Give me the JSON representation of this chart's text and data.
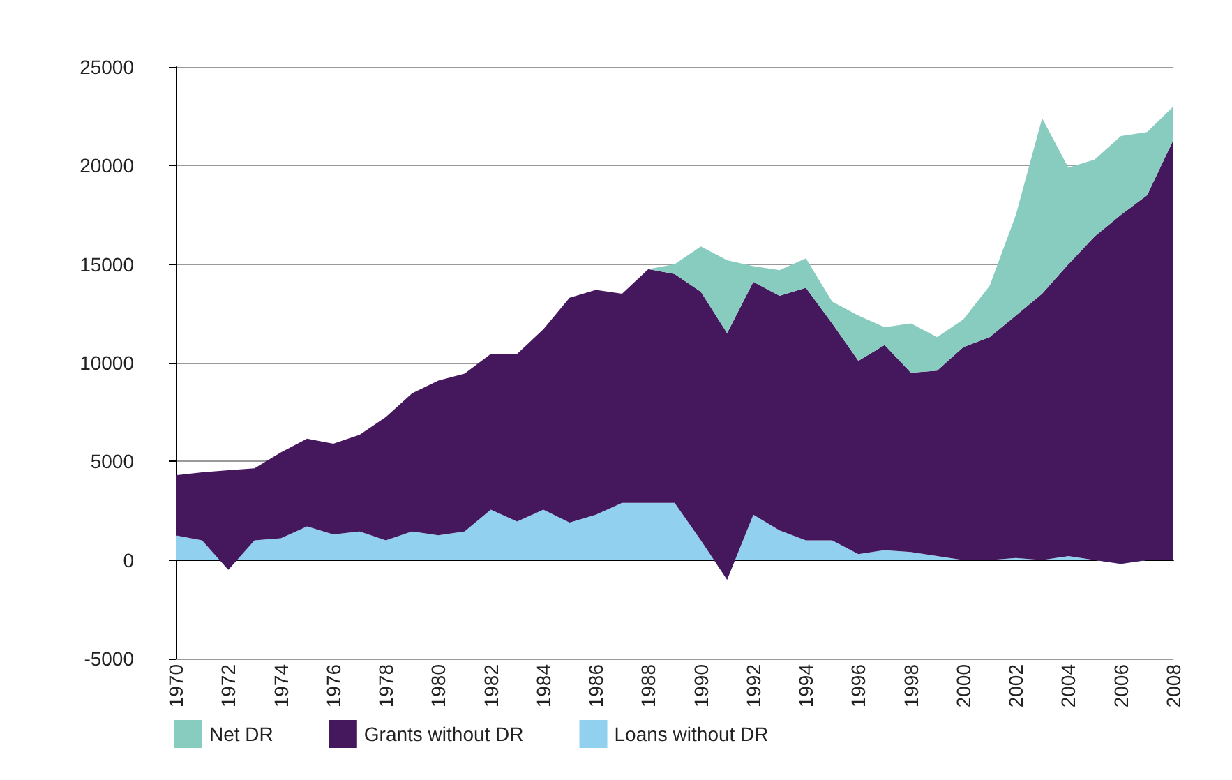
{
  "chart_data": {
    "type": "area",
    "stacked": true,
    "categories": [
      "1970",
      null,
      "1972",
      null,
      "1974",
      null,
      "1976",
      null,
      "1978",
      null,
      "1980",
      null,
      "1982",
      null,
      "1984",
      null,
      "1986",
      null,
      "1988",
      null,
      "1990",
      null,
      "1992",
      null,
      "1994",
      null,
      "1996",
      null,
      "1998",
      null,
      "2000",
      null,
      "2002",
      null,
      "2004",
      null,
      "2006",
      null,
      "2008"
    ],
    "series": [
      {
        "name": "Loans without DR",
        "color": "#92d0f0",
        "values": [
          1250,
          1000,
          -500,
          1000,
          1100,
          1700,
          1300,
          1450,
          1000,
          1450,
          1250,
          1450,
          2550,
          1950,
          2550,
          1900,
          2300,
          2900,
          2900,
          2900,
          1000,
          -1000,
          2300,
          1500,
          1000,
          1000,
          300,
          500,
          400,
          200,
          0,
          0,
          100,
          0,
          200,
          0,
          -200,
          0,
          0
        ]
      },
      {
        "name": "Grants without DR",
        "color": "#45175d",
        "values": [
          3050,
          3450,
          5050,
          3650,
          4350,
          4450,
          4600,
          4900,
          6250,
          7000,
          7850,
          8000,
          7900,
          8500,
          9150,
          11400,
          11400,
          10600,
          11850,
          11600,
          12600,
          12500,
          11800,
          11900,
          12800,
          11000,
          9800,
          10400,
          9100,
          9400,
          10800,
          11300,
          12300,
          13500,
          14800,
          16400,
          17700,
          18500,
          21300
        ]
      },
      {
        "name": "Net DR",
        "color": "#88cbbf",
        "values": [
          0,
          0,
          0,
          0,
          0,
          0,
          0,
          0,
          0,
          0,
          0,
          0,
          0,
          0,
          0,
          0,
          0,
          0,
          0,
          500,
          2300,
          3700,
          800,
          1300,
          1500,
          1100,
          2300,
          900,
          2500,
          1700,
          1400,
          2600,
          5100,
          8900,
          4900,
          3900,
          4000,
          3200,
          1700
        ]
      }
    ],
    "ylim": [
      -5000,
      25000
    ],
    "yticks": [
      -5000,
      0,
      5000,
      10000,
      15000,
      20000,
      25000
    ],
    "grid": "y",
    "legend": "bottom"
  }
}
